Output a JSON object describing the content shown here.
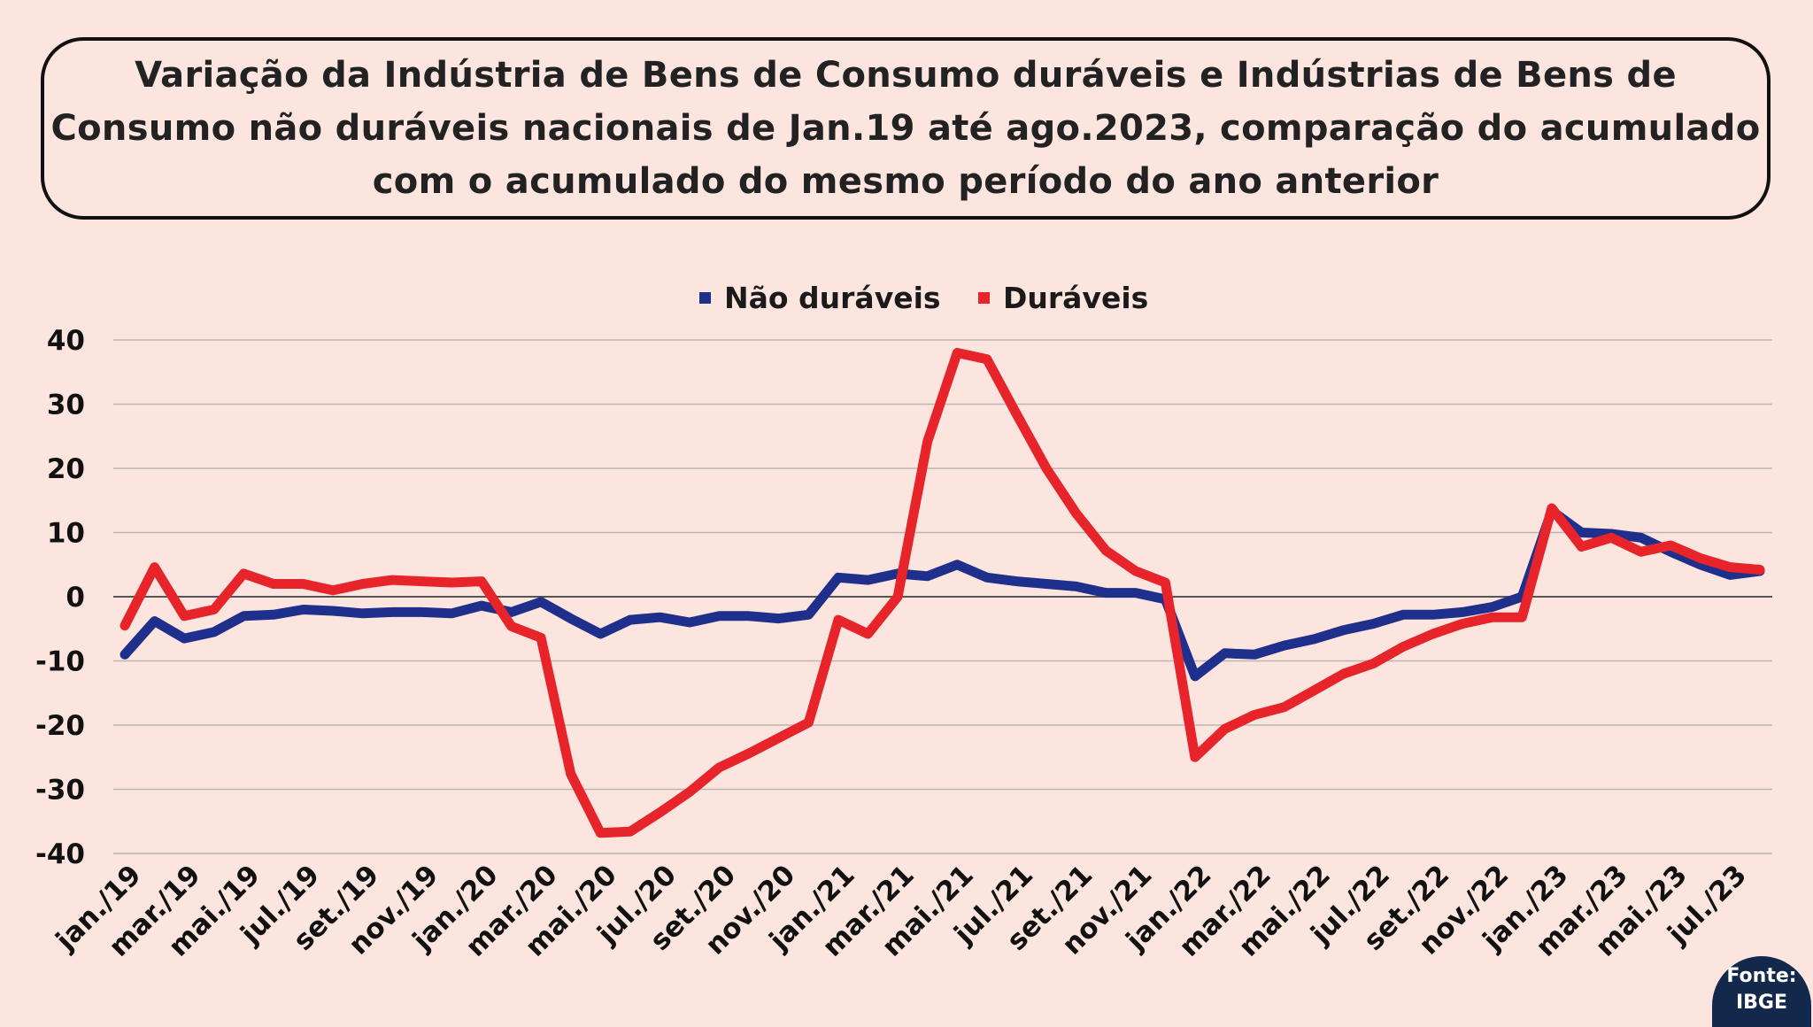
{
  "title": "Variação da Indústria de Bens de Consumo duráveis e Indústrias de Bens de Consumo não duráveis nacionais de Jan.19 até ago.2023, comparação do acumulado com o acumulado do mesmo período do ano anterior",
  "source": {
    "line1": "Fonte:",
    "line2": "IBGE"
  },
  "colors": {
    "background": "#fde5df",
    "nao_duraveis": "#1f2f8c",
    "duraveis": "#e8242b"
  },
  "chart_data": {
    "type": "line",
    "title": "Variação da Indústria de Bens de Consumo duráveis e Indústrias de Bens de Consumo não duráveis nacionais de Jan.19 até ago.2023, comparação do acumulado com o acumulado do mesmo período do ano anterior",
    "xlabel": "",
    "ylabel": "",
    "ylim": [
      -40,
      40
    ],
    "yticks": [
      40,
      30,
      20,
      10,
      0,
      -10,
      -20,
      -30,
      -40
    ],
    "grid": true,
    "legend": "top-center",
    "x": [
      "jan./19",
      "fev./19",
      "mar./19",
      "abr./19",
      "mai./19",
      "jun./19",
      "jul./19",
      "ago./19",
      "set./19",
      "out./19",
      "nov./19",
      "dez./19",
      "jan./20",
      "fev./20",
      "mar./20",
      "abr./20",
      "mai./20",
      "jun./20",
      "jul./20",
      "ago./20",
      "set./20",
      "out./20",
      "nov./20",
      "dez./20",
      "jan./21",
      "fev./21",
      "mar./21",
      "abr./21",
      "mai./21",
      "jun./21",
      "jul./21",
      "ago./21",
      "set./21",
      "out./21",
      "nov./21",
      "dez./21",
      "jan./22",
      "fev./22",
      "mar./22",
      "abr./22",
      "mai./22",
      "jun./22",
      "jul./22",
      "ago./22",
      "set./22",
      "out./22",
      "nov./22",
      "dez./22",
      "jan./23",
      "fev./23",
      "mar./23",
      "abr./23",
      "mai./23",
      "jun./23",
      "jul./23",
      "ago./23"
    ],
    "xtick_labels": [
      "jan./19",
      "mar./19",
      "mai./19",
      "jul./19",
      "set./19",
      "nov./19",
      "jan./20",
      "mar./20",
      "mai./20",
      "jul./20",
      "set./20",
      "nov./20",
      "jan./21",
      "mar./21",
      "mai./21",
      "jul./21",
      "set./21",
      "nov./21",
      "jan./22",
      "mar./22",
      "mai./22",
      "jul./22",
      "set./22",
      "nov./22",
      "jan./23",
      "mar./23",
      "mai./23",
      "jul./23"
    ],
    "series": [
      {
        "name": "Não duráveis",
        "color": "#1f2f8c",
        "values": [
          -9,
          -3.8,
          -6.5,
          -5.5,
          -3,
          -2.8,
          -2,
          -2.2,
          -2.6,
          -2.4,
          -2.4,
          -2.6,
          -1.4,
          -2.4,
          -0.8,
          -3.4,
          -5.8,
          -3.6,
          -3.2,
          -4,
          -3,
          -3,
          -3.4,
          -2.8,
          3,
          2.6,
          3.6,
          3.2,
          5,
          3,
          2.4,
          2,
          1.6,
          0.6,
          0.6,
          -0.4,
          -12.4,
          -8.8,
          -9,
          -7.6,
          -6.6,
          -5.2,
          -4.2,
          -2.8,
          -2.8,
          -2.4,
          -1.6,
          0,
          13.4,
          10,
          9.8,
          9.2,
          7,
          5,
          3.4,
          4
        ]
      },
      {
        "name": "Duráveis",
        "color": "#e8242b",
        "values": [
          -4.5,
          4.6,
          -3,
          -2,
          3.6,
          2,
          2,
          1,
          2,
          2.6,
          2.4,
          2.2,
          2.4,
          -4.6,
          -6.4,
          -27.6,
          -36.8,
          -36.6,
          -33.6,
          -30.4,
          -26.6,
          -24.4,
          -22,
          -19.6,
          -3.6,
          -5.8,
          0,
          24.2,
          38,
          37,
          28.4,
          20,
          13,
          7.2,
          4,
          2.2,
          -25,
          -20.6,
          -18.4,
          -17.2,
          -14.6,
          -12,
          -10.4,
          -7.8,
          -5.8,
          -4.2,
          -3.2,
          -3.2,
          13.8,
          7.8,
          9.2,
          7,
          8,
          6,
          4.6,
          4.2
        ]
      }
    ]
  }
}
